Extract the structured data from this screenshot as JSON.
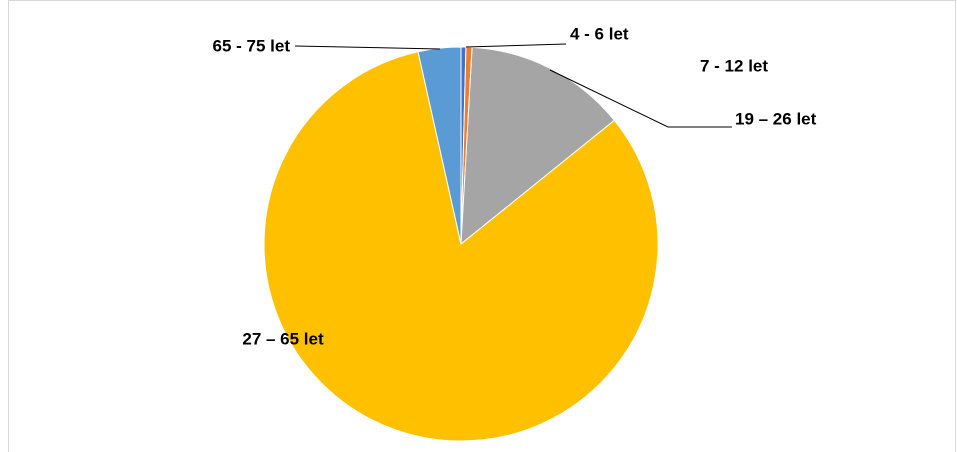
{
  "chart_data": {
    "type": "pie",
    "categories": [
      "4 - 6  let",
      "7 - 12  let",
      "19 – 26  let",
      "27 – 65  let",
      "65 - 75  let"
    ],
    "values": [
      0.4,
      0.5,
      13.3,
      82.3,
      3.5
    ],
    "colors": [
      "#4472c4",
      "#ed7d31",
      "#a5a5a5",
      "#ffc000",
      "#5b9bd5"
    ]
  }
}
